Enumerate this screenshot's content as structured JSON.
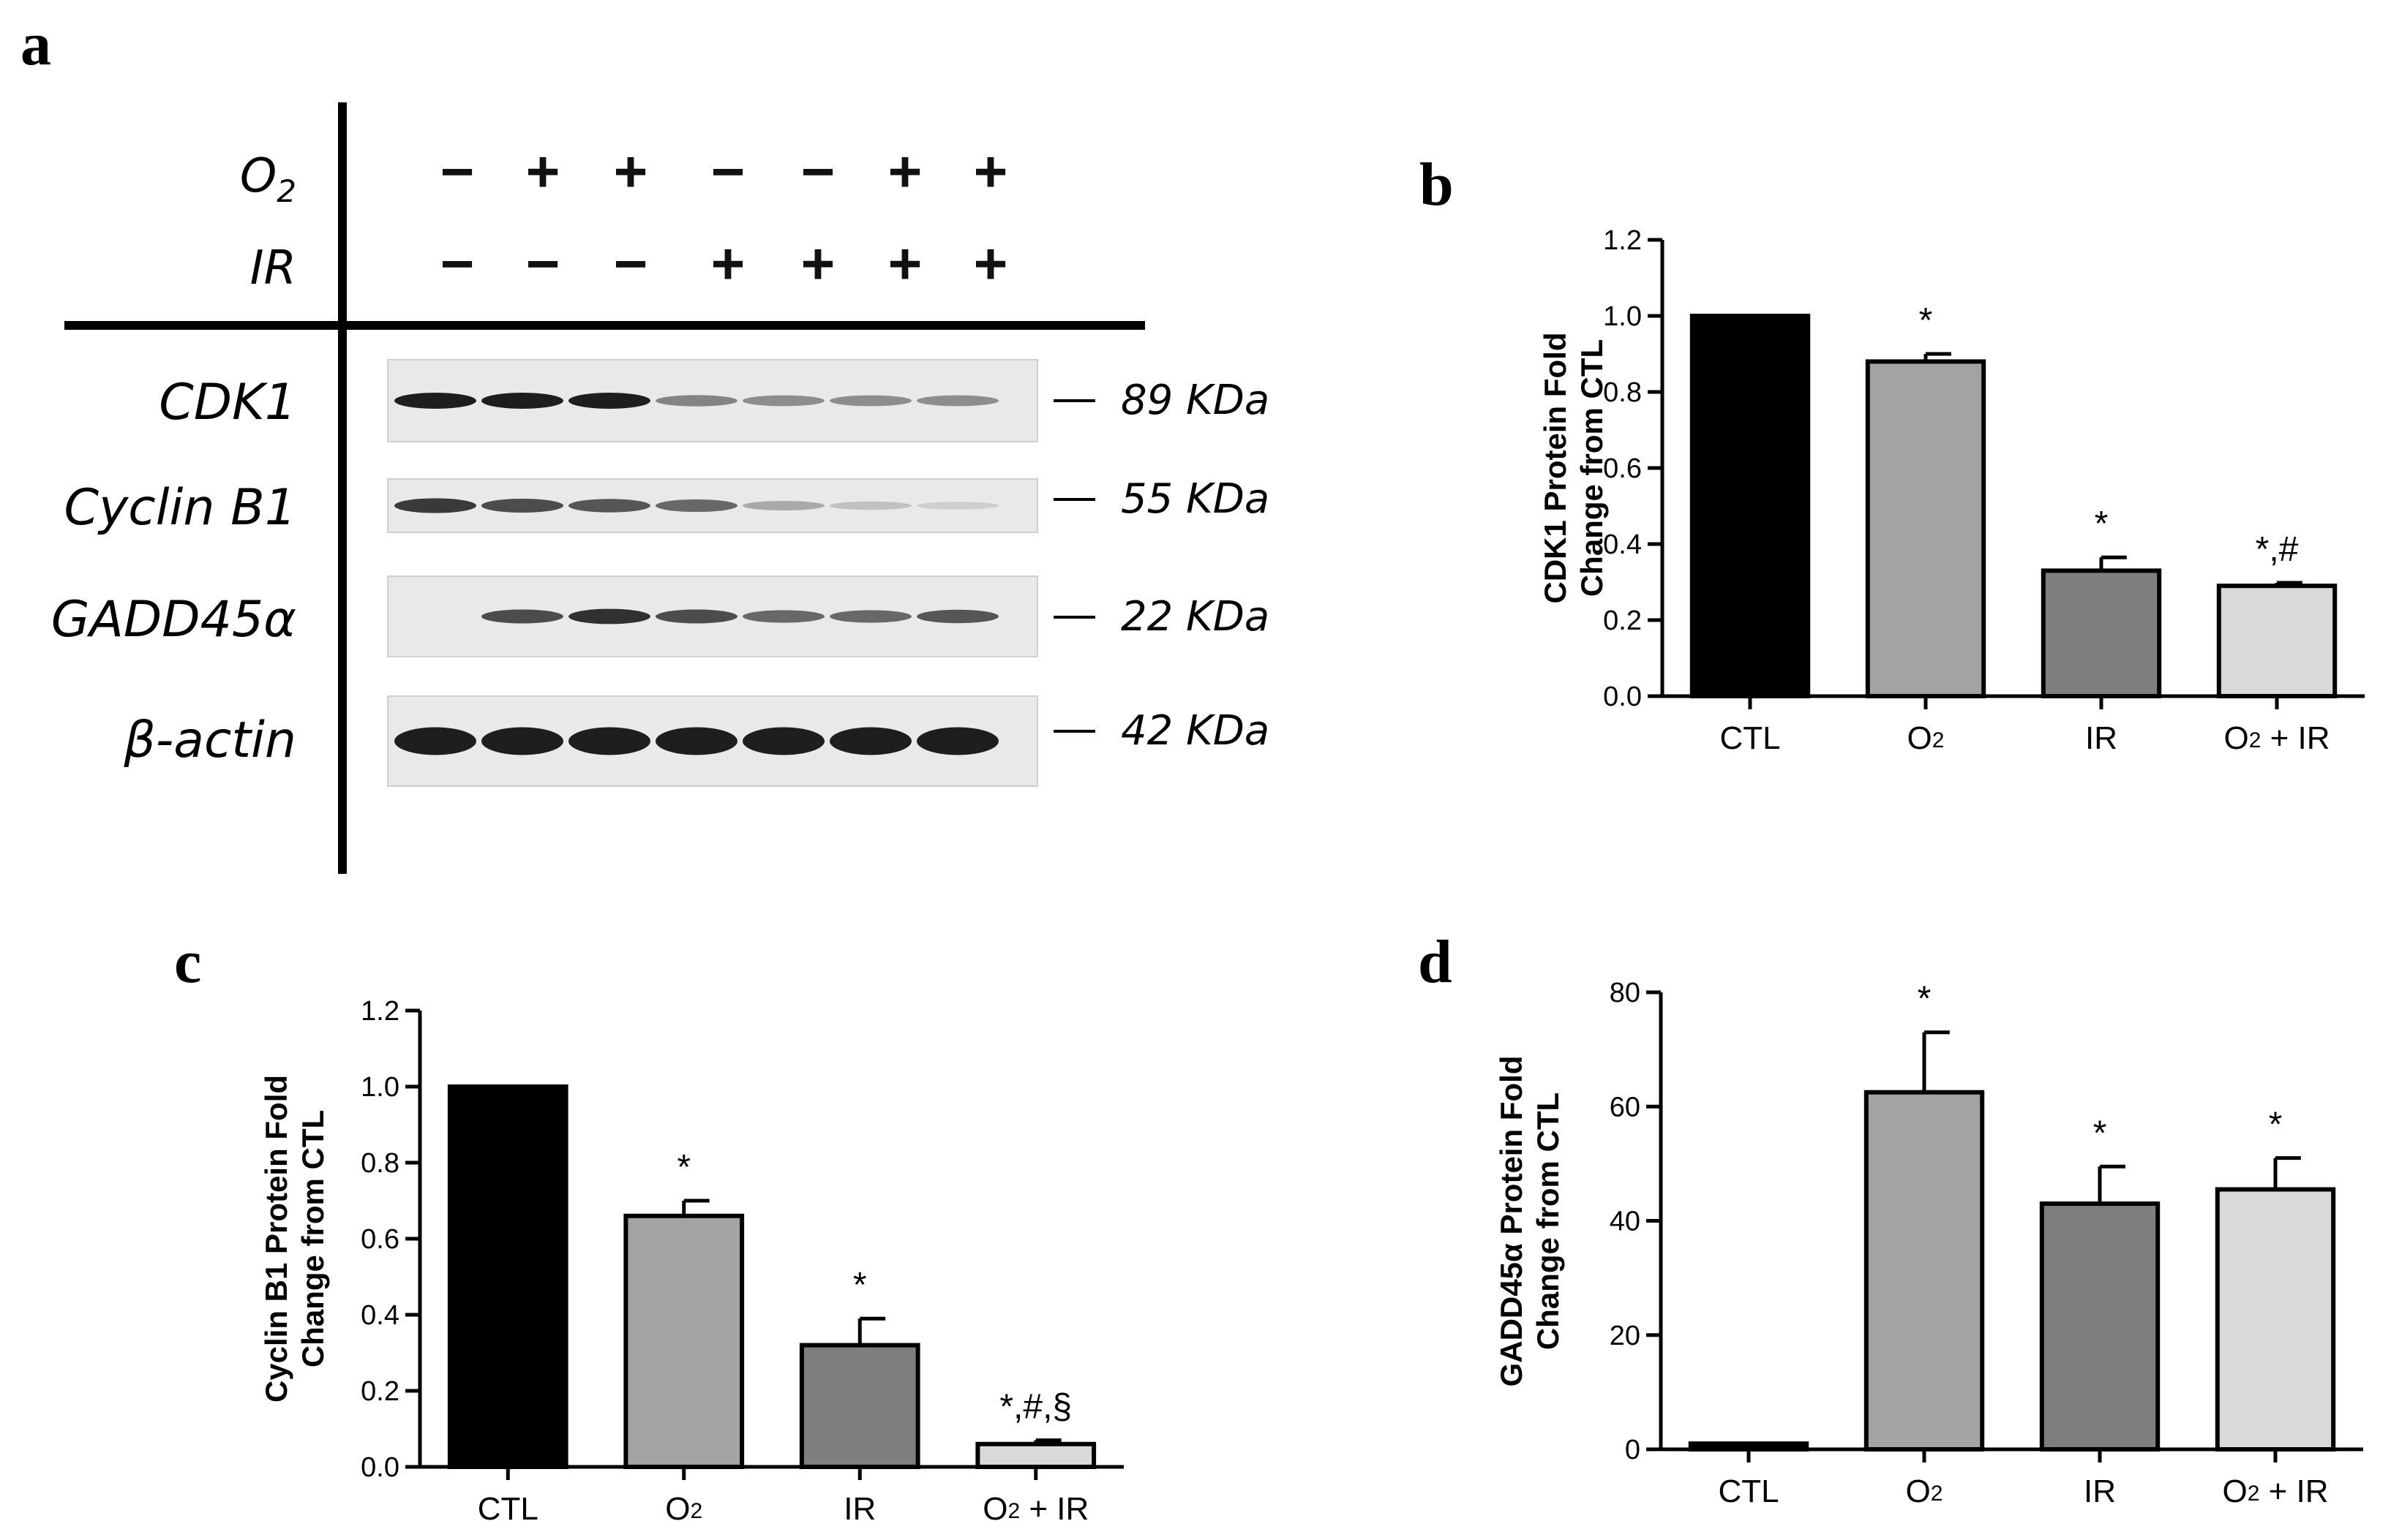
{
  "panel_a": {
    "letter": "a",
    "treatments": [
      {
        "label": "O",
        "sub": "2",
        "signs": [
          "−",
          "+",
          "+",
          "−",
          "−",
          "+",
          "+"
        ]
      },
      {
        "label": "IR",
        "sub": "",
        "signs": [
          "−",
          "−",
          "−",
          "+",
          "+",
          "+",
          "+"
        ]
      }
    ],
    "blots": [
      {
        "protein": "CDK1",
        "size": "89 KDa",
        "bands": [
          1.0,
          1.0,
          1.0,
          0.45,
          0.4,
          0.4,
          0.4
        ]
      },
      {
        "protein": "Cyclin B1",
        "size": "55 KDa",
        "bands": [
          0.85,
          0.75,
          0.7,
          0.6,
          0.25,
          0.12,
          0.05
        ]
      },
      {
        "protein": "GADD45α",
        "size": "22 KDa",
        "bands": [
          0.0,
          0.75,
          0.9,
          0.75,
          0.6,
          0.6,
          0.7
        ]
      },
      {
        "protein": "β-actin",
        "size": "42 KDa",
        "bands": [
          1.0,
          1.0,
          1.0,
          1.0,
          1.0,
          1.0,
          1.0
        ]
      }
    ]
  },
  "chart_data": [
    {
      "panel": "b",
      "type": "bar",
      "ylabel": [
        "CDK1 Protein Fold",
        "Change from CTL"
      ],
      "categories": [
        {
          "main": "CTL",
          "sub": "",
          "rest": ""
        },
        {
          "main": "O",
          "sub": "2",
          "rest": ""
        },
        {
          "main": "IR",
          "sub": "",
          "rest": ""
        },
        {
          "main": "O",
          "sub": "2",
          "rest": " + IR"
        }
      ],
      "values": [
        1.0,
        0.88,
        0.33,
        0.29
      ],
      "errors": [
        0.0,
        0.02,
        0.035,
        0.008
      ],
      "annotations": [
        "",
        "*",
        "*",
        "*,#"
      ],
      "ylim": [
        0,
        1.2
      ],
      "yticks": [
        0.0,
        0.2,
        0.4,
        0.6,
        0.8,
        1.0,
        1.2
      ],
      "yticklabels": [
        "0.0",
        "0.2",
        "0.4",
        "0.6",
        "0.8",
        "1.0",
        "1.2"
      ],
      "colors": [
        "#000000",
        "#a3a3a6",
        "#7e7e7e",
        "#d9d9d9"
      ]
    },
    {
      "panel": "c",
      "type": "bar",
      "ylabel": [
        "Cyclin B1 Protein Fold",
        "Change from CTL"
      ],
      "categories": [
        {
          "main": "CTL",
          "sub": "",
          "rest": ""
        },
        {
          "main": "O",
          "sub": "2",
          "rest": ""
        },
        {
          "main": "IR",
          "sub": "",
          "rest": ""
        },
        {
          "main": "O",
          "sub": "2",
          "rest": " + IR"
        }
      ],
      "values": [
        1.0,
        0.66,
        0.32,
        0.06
      ],
      "errors": [
        0.0,
        0.04,
        0.07,
        0.01
      ],
      "annotations": [
        "",
        "*",
        "*",
        "*,#,§"
      ],
      "ylim": [
        0,
        1.2
      ],
      "yticks": [
        0.0,
        0.2,
        0.4,
        0.6,
        0.8,
        1.0,
        1.2
      ],
      "yticklabels": [
        "0.0",
        "0.2",
        "0.4",
        "0.6",
        "0.8",
        "1.0",
        "1.2"
      ],
      "colors": [
        "#000000",
        "#a3a3a6",
        "#7e7e7e",
        "#d9d9d9"
      ]
    },
    {
      "panel": "d",
      "type": "bar",
      "ylabel": [
        "GADD45α Protein Fold",
        "Change from CTL"
      ],
      "categories": [
        {
          "main": "CTL",
          "sub": "",
          "rest": ""
        },
        {
          "main": "O",
          "sub": "2",
          "rest": ""
        },
        {
          "main": "IR",
          "sub": "",
          "rest": ""
        },
        {
          "main": "O",
          "sub": "2",
          "rest": " + IR"
        }
      ],
      "values": [
        1,
        62.5,
        43,
        45.5
      ],
      "errors": [
        0,
        10.5,
        6.5,
        5.5
      ],
      "annotations": [
        "",
        "*",
        "*",
        "*"
      ],
      "ylim": [
        0,
        80
      ],
      "yticks": [
        0,
        20,
        40,
        60,
        80
      ],
      "yticklabels": [
        "0",
        "20",
        "40",
        "60",
        "80"
      ],
      "colors": [
        "#000000",
        "#a3a3a6",
        "#7e7e7e",
        "#d9d9d9"
      ]
    }
  ]
}
